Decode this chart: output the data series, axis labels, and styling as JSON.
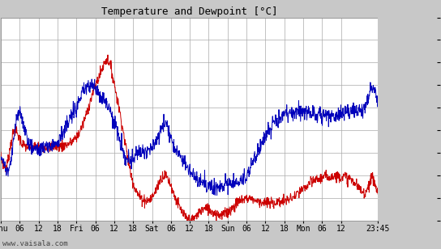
{
  "title": "Temperature and Dewpoint [°C]",
  "ylim": [
    -6,
    12
  ],
  "yticks": [
    -6,
    -4,
    -2,
    0,
    2,
    4,
    6,
    8,
    10,
    12
  ],
  "bg_color": "#c8c8c8",
  "plot_bg_color": "#ffffff",
  "grid_color": "#aaaaaa",
  "temp_color": "#cc0000",
  "dewp_color": "#0000bb",
  "watermark": "www.vaisala.com",
  "xlabel_ticks": [
    "Thu",
    "06",
    "12",
    "18",
    "Fri",
    "06",
    "12",
    "18",
    "Sat",
    "06",
    "12",
    "18",
    "Sun",
    "06",
    "12",
    "18",
    "Mon",
    "06",
    "12",
    "23:45"
  ],
  "tick_hours": [
    0,
    6,
    12,
    18,
    24,
    30,
    36,
    42,
    48,
    54,
    60,
    66,
    72,
    78,
    84,
    90,
    96,
    102,
    108,
    119.75
  ],
  "total_hours": 119.75,
  "n_points": 1200
}
